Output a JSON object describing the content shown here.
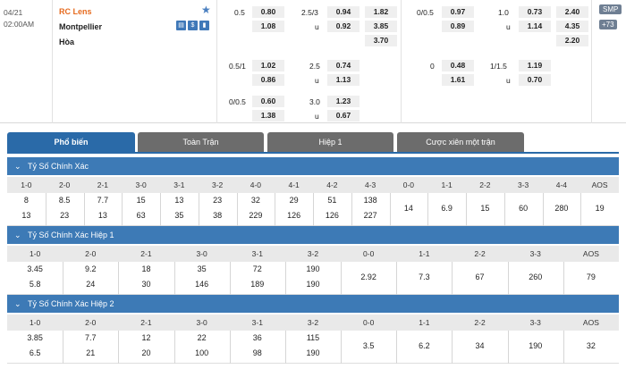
{
  "match": {
    "date": "04/21",
    "time": "02:00AM",
    "home": "RC Lens",
    "away": "Montpellier",
    "draw": "Hòa",
    "smp_badge": "SMP",
    "more_badge": "+73",
    "icons": [
      "score-icon",
      "money-icon",
      "stats-icon"
    ]
  },
  "odds": {
    "ft_hdp_main": {
      "line": "0.5",
      "home": "0.80",
      "away": "1.08"
    },
    "ft_ou_main": {
      "line": "2.5/3",
      "over": "0.94",
      "under_label": "u",
      "under": "0.92"
    },
    "ft_1x2": {
      "home": "1.82",
      "away": "3.85",
      "draw": "3.70"
    },
    "h1_hdp_main": {
      "line": "0/0.5",
      "home": "0.97",
      "away": "0.89"
    },
    "h1_ou_main": {
      "line": "1.0",
      "over": "0.73",
      "under_label": "u",
      "under": "1.14"
    },
    "h1_1x2": {
      "home": "2.40",
      "away": "4.35",
      "draw": "2.20"
    },
    "ft_hdp_alt1": {
      "line": "0.5/1",
      "home": "1.02",
      "away": "0.86"
    },
    "ft_ou_alt1": {
      "line": "2.5",
      "over": "0.74",
      "under_label": "u",
      "under": "1.13"
    },
    "h1_hdp_alt1": {
      "line": "0",
      "home": "0.48",
      "away": "1.61"
    },
    "h1_ou_alt1": {
      "line": "1/1.5",
      "over": "1.19",
      "under_label": "u",
      "under": "0.70"
    },
    "ft_hdp_alt2": {
      "line": "0/0.5",
      "home": "0.60",
      "away": "1.38"
    },
    "ft_ou_alt2": {
      "line": "3.0",
      "over": "1.23",
      "under_label": "u",
      "under": "0.67"
    }
  },
  "tabs": [
    "Phổ biến",
    "Toàn Trận",
    "Hiệp 1",
    "Cược xiên một trận"
  ],
  "sections": [
    {
      "title": "Tỷ Số Chính Xác",
      "cols": [
        "1-0",
        "2-0",
        "2-1",
        "3-0",
        "3-1",
        "3-2",
        "4-0",
        "4-1",
        "4-2",
        "4-3",
        "0-0",
        "1-1",
        "2-2",
        "3-3",
        "4-4",
        "AOS"
      ],
      "top": [
        "8",
        "8.5",
        "7.7",
        "15",
        "13",
        "23",
        "32",
        "29",
        "51",
        "138"
      ],
      "bottom": [
        "13",
        "23",
        "13",
        "63",
        "35",
        "38",
        "229",
        "126",
        "126",
        "227"
      ],
      "mid": [
        "14",
        "6.9",
        "15",
        "60",
        "280",
        "19"
      ]
    },
    {
      "title": "Tỷ Số Chính Xác Hiệp 1",
      "cols": [
        "1-0",
        "2-0",
        "2-1",
        "3-0",
        "3-1",
        "3-2",
        "0-0",
        "1-1",
        "2-2",
        "3-3",
        "AOS"
      ],
      "top": [
        "3.45",
        "9.2",
        "18",
        "35",
        "72",
        "190"
      ],
      "bottom": [
        "5.8",
        "24",
        "30",
        "146",
        "189",
        "190"
      ],
      "mid": [
        "2.92",
        "7.3",
        "67",
        "260",
        "79"
      ]
    },
    {
      "title": "Tỷ Số Chính Xác Hiệp 2",
      "cols": [
        "1-0",
        "2-0",
        "2-1",
        "3-0",
        "3-1",
        "3-2",
        "0-0",
        "1-1",
        "2-2",
        "3-3",
        "AOS"
      ],
      "top": [
        "3.85",
        "7.7",
        "12",
        "22",
        "36",
        "115"
      ],
      "bottom": [
        "6.5",
        "21",
        "20",
        "100",
        "98",
        "190"
      ],
      "mid": [
        "3.5",
        "6.2",
        "34",
        "190",
        "32"
      ]
    }
  ],
  "colors": {
    "accent": "#2a6aa8",
    "section": "#3d7ab6",
    "home": "#e66a1e",
    "tab": "#6c6c6c"
  }
}
